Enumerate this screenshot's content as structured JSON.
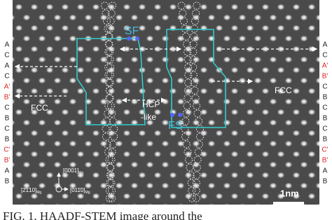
{
  "figure": {
    "left_stack": [
      {
        "text": "A",
        "red": false
      },
      {
        "text": "C",
        "red": false
      },
      {
        "text": "A",
        "red": false
      },
      {
        "text": "C",
        "red": false
      },
      {
        "text": "A'",
        "red": true
      },
      {
        "text": "B'",
        "red": true
      },
      {
        "text": "C",
        "red": false
      },
      {
        "text": "B",
        "red": false
      },
      {
        "text": "C",
        "red": false
      },
      {
        "text": "B",
        "red": false
      },
      {
        "text": "C'",
        "red": true
      },
      {
        "text": "B'",
        "red": true
      },
      {
        "text": "A",
        "red": false
      },
      {
        "text": "B",
        "red": false
      }
    ],
    "right_stack": [
      {
        "text": "A",
        "red": false
      },
      {
        "text": "C",
        "red": false
      },
      {
        "text": "A'",
        "red": true
      },
      {
        "text": "B'",
        "red": true
      },
      {
        "text": "C",
        "red": false
      },
      {
        "text": "B",
        "red": false
      },
      {
        "text": "C",
        "red": false
      },
      {
        "text": "B",
        "red": false
      },
      {
        "text": "C",
        "red": false
      },
      {
        "text": "B",
        "red": false
      },
      {
        "text": "C'",
        "red": true
      },
      {
        "text": "B'",
        "red": true
      },
      {
        "text": "A",
        "red": false
      },
      {
        "text": "B",
        "red": false
      }
    ],
    "sf": "SF",
    "fs": "FS",
    "hcp": "HCP",
    "like": "-like",
    "fcc_left": "FCC",
    "fcc_right": "FCC",
    "scale": "1nm",
    "axis_up": "[0001]",
    "axis_right": "[011̄0]",
    "axis_out": "[2̄1̄10]",
    "subscript": "Mg",
    "caption": "FIG. 1. HAADF-STEM image around the"
  }
}
